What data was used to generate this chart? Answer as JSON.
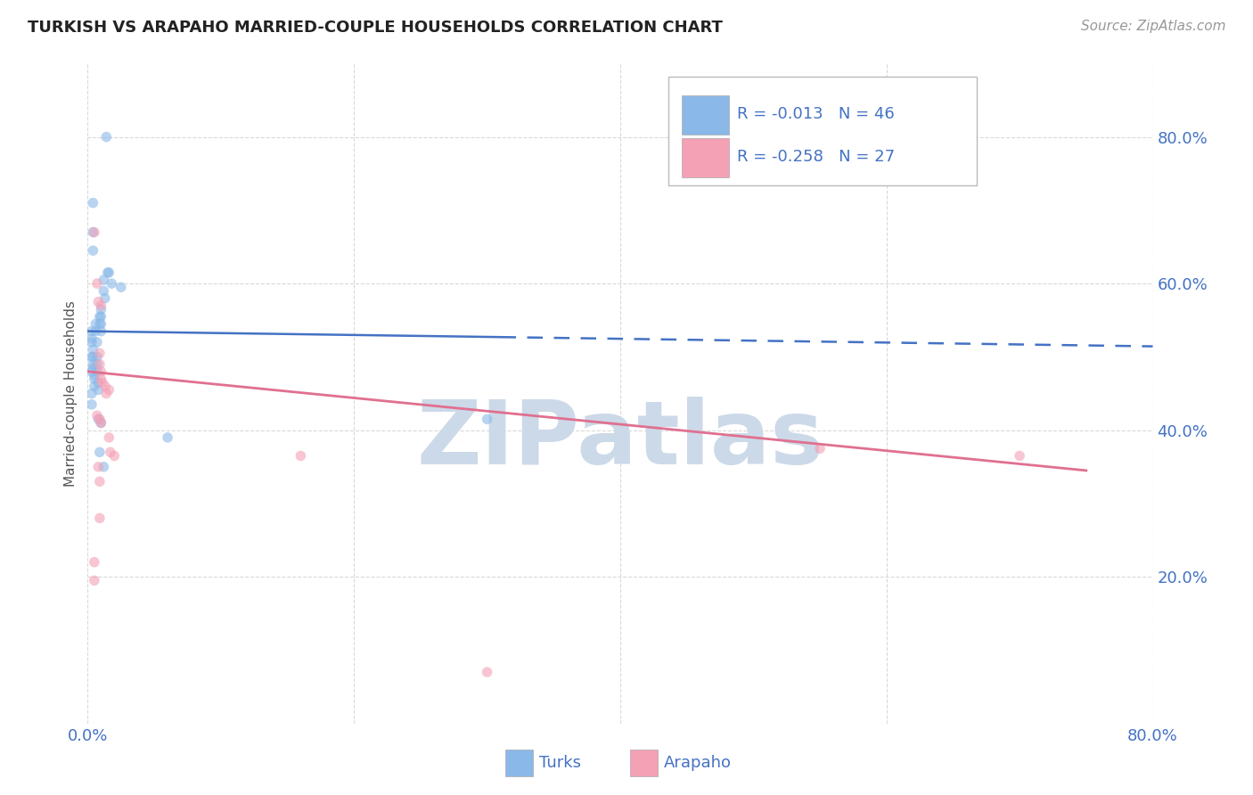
{
  "title": "TURKISH VS ARAPAHO MARRIED-COUPLE HOUSEHOLDS CORRELATION CHART",
  "source": "Source: ZipAtlas.com",
  "ylabel": "Married-couple Households",
  "xlim": [
    0.0,
    0.8
  ],
  "ylim": [
    0.0,
    0.9
  ],
  "turks_line_color": "#4472c4",
  "arapaho_line_color": "#e07090",
  "turks_scatter_color": "#8ab8e8",
  "arapaho_scatter_color": "#f4a0b5",
  "scatter_alpha": 0.6,
  "scatter_size": 70,
  "turks_scatter": [
    [
      0.003,
      0.535
    ],
    [
      0.003,
      0.525
    ],
    [
      0.004,
      0.51
    ],
    [
      0.004,
      0.5
    ],
    [
      0.004,
      0.49
    ],
    [
      0.004,
      0.485
    ],
    [
      0.005,
      0.475
    ],
    [
      0.005,
      0.47
    ],
    [
      0.005,
      0.46
    ],
    [
      0.006,
      0.545
    ],
    [
      0.006,
      0.535
    ],
    [
      0.007,
      0.52
    ],
    [
      0.007,
      0.5
    ],
    [
      0.007,
      0.49
    ],
    [
      0.007,
      0.48
    ],
    [
      0.008,
      0.465
    ],
    [
      0.008,
      0.455
    ],
    [
      0.009,
      0.555
    ],
    [
      0.009,
      0.545
    ],
    [
      0.01,
      0.565
    ],
    [
      0.01,
      0.555
    ],
    [
      0.01,
      0.545
    ],
    [
      0.01,
      0.535
    ],
    [
      0.012,
      0.605
    ],
    [
      0.012,
      0.59
    ],
    [
      0.013,
      0.58
    ],
    [
      0.015,
      0.615
    ],
    [
      0.016,
      0.615
    ],
    [
      0.018,
      0.6
    ],
    [
      0.004,
      0.71
    ],
    [
      0.004,
      0.67
    ],
    [
      0.004,
      0.645
    ],
    [
      0.008,
      0.415
    ],
    [
      0.01,
      0.41
    ],
    [
      0.009,
      0.37
    ],
    [
      0.012,
      0.35
    ],
    [
      0.014,
      0.8
    ],
    [
      0.003,
      0.52
    ],
    [
      0.003,
      0.5
    ],
    [
      0.003,
      0.48
    ],
    [
      0.003,
      0.45
    ],
    [
      0.003,
      0.435
    ],
    [
      0.025,
      0.595
    ],
    [
      0.06,
      0.39
    ],
    [
      0.3,
      0.415
    ]
  ],
  "arapaho_scatter": [
    [
      0.005,
      0.67
    ],
    [
      0.007,
      0.6
    ],
    [
      0.008,
      0.575
    ],
    [
      0.01,
      0.57
    ],
    [
      0.009,
      0.505
    ],
    [
      0.009,
      0.49
    ],
    [
      0.01,
      0.48
    ],
    [
      0.01,
      0.47
    ],
    [
      0.011,
      0.465
    ],
    [
      0.013,
      0.46
    ],
    [
      0.014,
      0.45
    ],
    [
      0.016,
      0.455
    ],
    [
      0.007,
      0.42
    ],
    [
      0.009,
      0.415
    ],
    [
      0.01,
      0.41
    ],
    [
      0.016,
      0.39
    ],
    [
      0.017,
      0.37
    ],
    [
      0.02,
      0.365
    ],
    [
      0.008,
      0.35
    ],
    [
      0.009,
      0.33
    ],
    [
      0.009,
      0.28
    ],
    [
      0.005,
      0.22
    ],
    [
      0.005,
      0.195
    ],
    [
      0.16,
      0.365
    ],
    [
      0.55,
      0.375
    ],
    [
      0.7,
      0.365
    ],
    [
      0.3,
      0.07
    ]
  ],
  "turks_line_x_solid_end": 0.31,
  "turks_line_y_start": 0.535,
  "turks_line_y_end": 0.527,
  "arapaho_line_x_end": 0.75,
  "arapaho_line_y_start": 0.48,
  "arapaho_line_y_end": 0.345,
  "watermark": "ZIPatlas",
  "watermark_color": "#ccd9e8",
  "background_color": "#ffffff",
  "grid_color": "#d0d0d0"
}
